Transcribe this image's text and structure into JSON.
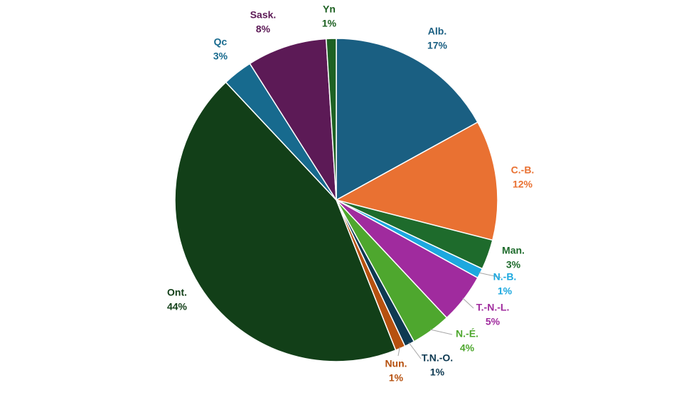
{
  "chart_data": {
    "type": "pie",
    "categories": [
      "Alb.",
      "C.-B.",
      "Man.",
      "N.-B.",
      "T.-N.-L.",
      "N.-É.",
      "T.N.-O.",
      "Nun.",
      "Ont.",
      "Qc",
      "Sask.",
      "Yn"
    ],
    "values": [
      17,
      12,
      3,
      1,
      5,
      4,
      1,
      1,
      44,
      3,
      8,
      1
    ],
    "value_labels": [
      "17%",
      "12%",
      "3%",
      "1%",
      "5%",
      "4%",
      "1%",
      "1%",
      "44%",
      "3%",
      "8%",
      "1%"
    ],
    "colors": [
      "#1a5f82",
      "#e97132",
      "#1e6b2c",
      "#1ca8df",
      "#a02b9e",
      "#4ea72e",
      "#0e3a52",
      "#b6510f",
      "#123f18",
      "#176a8e",
      "#5c1a56",
      "#1e6123"
    ]
  }
}
